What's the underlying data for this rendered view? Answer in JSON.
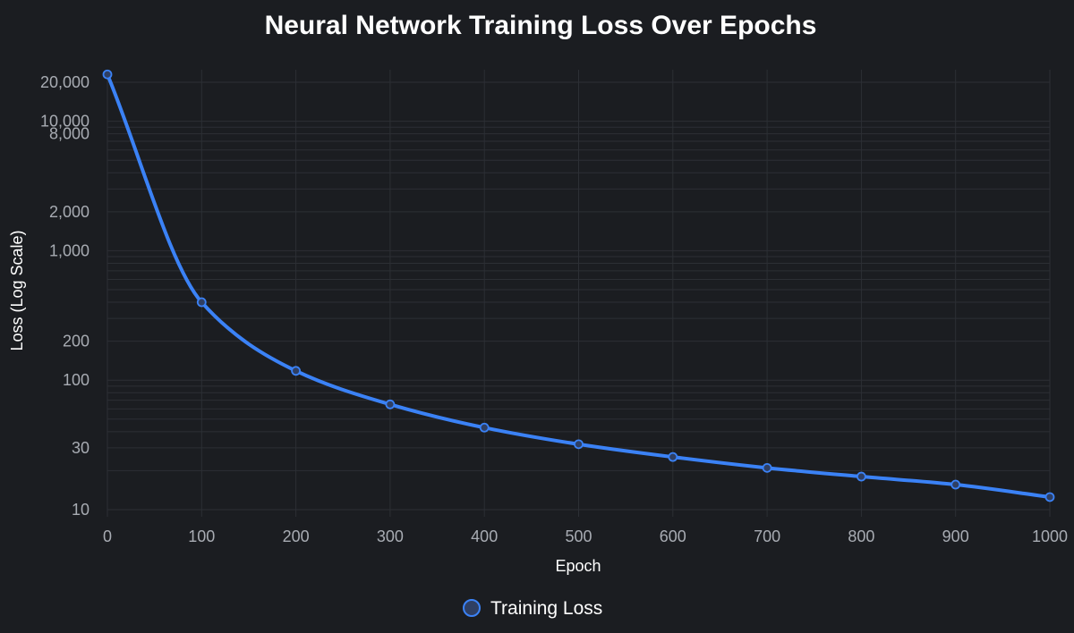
{
  "colors": {
    "background": "#1b1d21",
    "grid": "#2c2f35",
    "series": "#3b82f6",
    "marker_fill": "#2f3f63",
    "tick_text": "#a8acb3",
    "title_text": "#ffffff"
  },
  "chart_data": {
    "type": "line",
    "title": "Neural Network Training Loss Over Epochs",
    "xlabel": "Epoch",
    "ylabel": "Loss (Log Scale)",
    "x_scale": "linear",
    "y_scale": "log",
    "xlim": [
      0,
      1000
    ],
    "ylim": [
      10,
      25000
    ],
    "x_ticks": [
      0,
      100,
      200,
      300,
      400,
      500,
      600,
      700,
      800,
      900,
      1000
    ],
    "x_tick_labels": [
      "0",
      "100",
      "200",
      "300",
      "400",
      "500",
      "600",
      "700",
      "800",
      "900",
      "1000"
    ],
    "y_ticks": [
      10,
      30,
      100,
      200,
      1000,
      2000,
      8000,
      10000,
      20000
    ],
    "y_tick_labels": [
      "10",
      "30",
      "100",
      "200",
      "1,000",
      "2,000",
      "8,000",
      "10,000",
      "20,000"
    ],
    "grid": true,
    "legend_position": "bottom",
    "series": [
      {
        "name": "Training Loss",
        "color": "#3b82f6",
        "x": [
          0,
          100,
          200,
          300,
          400,
          500,
          600,
          700,
          800,
          900,
          1000
        ],
        "y": [
          23000,
          400,
          118,
          65,
          43,
          32,
          25.5,
          21,
          18,
          15.6,
          12.5
        ]
      }
    ]
  }
}
